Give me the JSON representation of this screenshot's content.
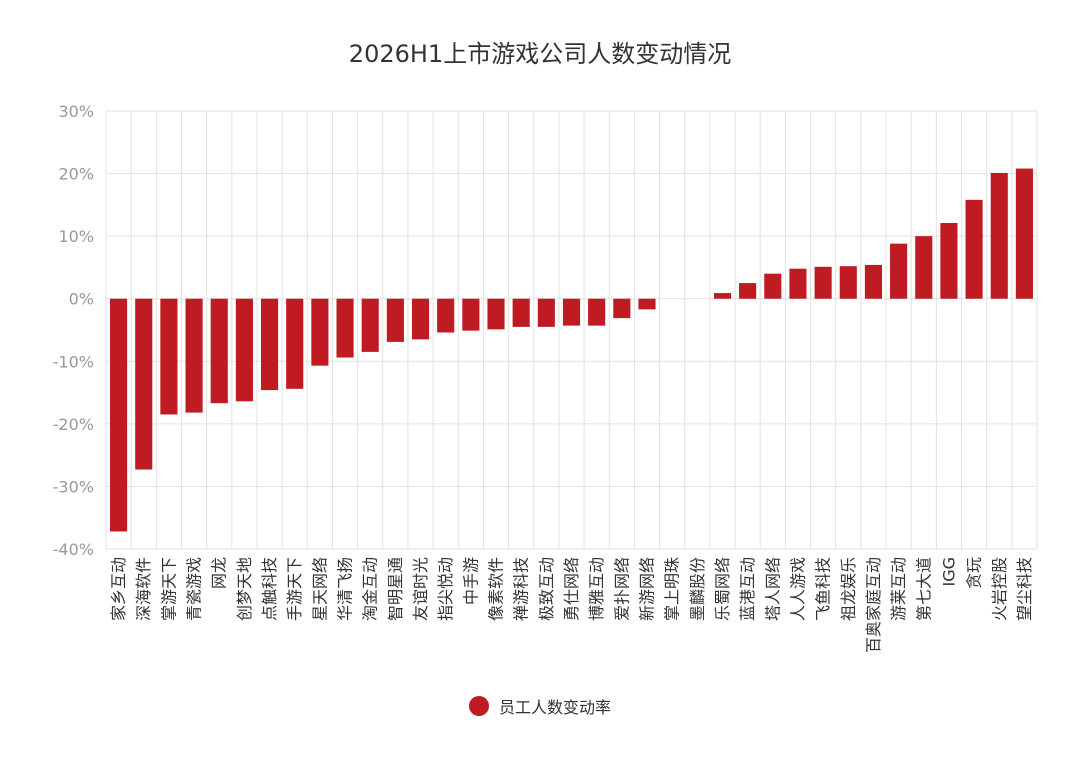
{
  "chart_data": {
    "type": "bar",
    "title": "2026H1上市游戏公司人数变动情况",
    "categories": [
      "家乡互动",
      "深海软件",
      "掌游天下",
      "青瓷游戏",
      "网龙",
      "创梦天地",
      "点触科技",
      "手游天下",
      "星天网络",
      "华清飞扬",
      "淘金互动",
      "智明星通",
      "友谊时光",
      "指尖悦动",
      "中手游",
      "像素软件",
      "禅游科技",
      "极致互动",
      "勇仕网络",
      "博雅互动",
      "爱扑网络",
      "新游网络",
      "掌上明珠",
      "墨麟股份",
      "乐蜀网络",
      "蓝港互动",
      "塔人网络",
      "人人游戏",
      "飞鱼科技",
      "祖龙娱乐",
      "百奥家庭互动",
      "游莱互动",
      "第七大道",
      "IGG",
      "贪玩",
      "火岩控股",
      "望尘科技"
    ],
    "series": [
      {
        "name": "员工人数变动率",
        "values": [
          -37.2,
          -27.3,
          -18.5,
          -18.2,
          -16.7,
          -16.4,
          -14.6,
          -14.4,
          -10.7,
          -9.4,
          -8.5,
          -6.9,
          -6.5,
          -5.4,
          -5.1,
          -4.9,
          -4.5,
          -4.5,
          -4.3,
          -4.3,
          -3.1,
          -1.7,
          0,
          0,
          0.9,
          2.5,
          4.0,
          4.8,
          5.1,
          5.2,
          5.4,
          8.8,
          10.0,
          12.1,
          15.8,
          20.1,
          20.8
        ]
      }
    ],
    "ylim": [
      -40,
      30
    ],
    "yticks": [
      -40,
      -30,
      -20,
      -10,
      0,
      10,
      20,
      30
    ],
    "ytick_suffix": "%",
    "grid": true,
    "legend_position": "bottom-center",
    "bar_color": "#bf1b22",
    "grid_color": "#e2e2e2",
    "axis_label_color": "#999999",
    "category_label_color": "#333333"
  }
}
